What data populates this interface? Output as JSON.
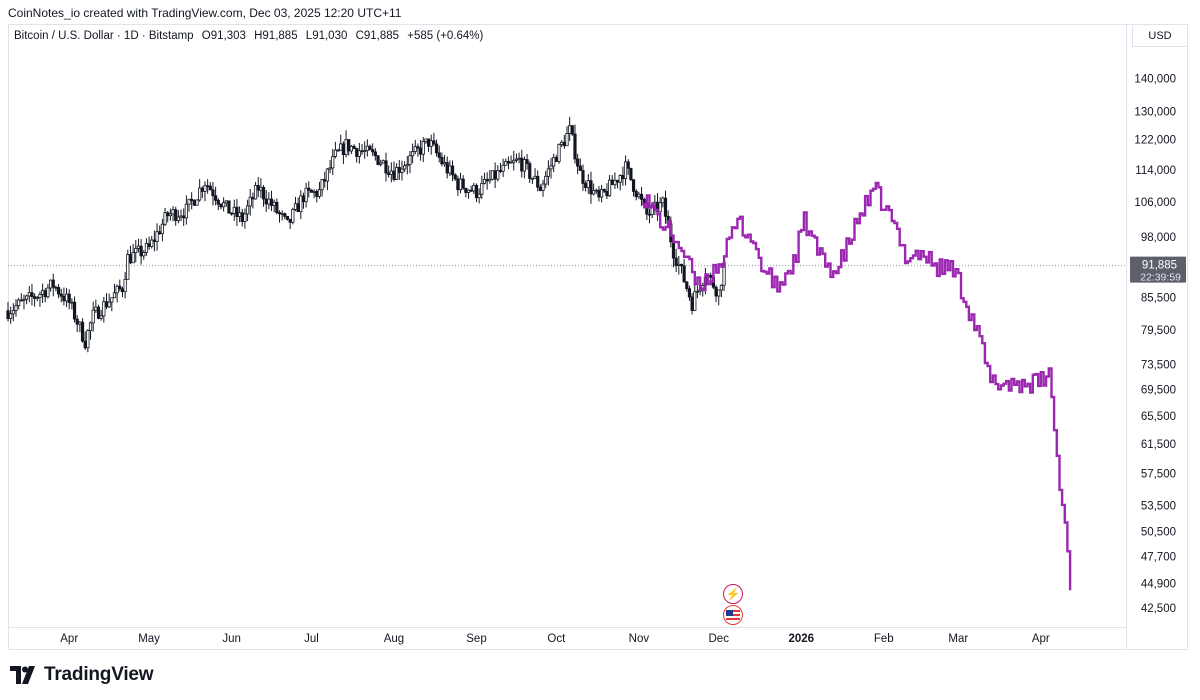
{
  "header": {
    "attribution": "CoinNotes_io created with TradingView.com, Dec 03, 2025 12:20 UTC+11"
  },
  "legend": {
    "symbol": "Bitcoin / U.S. Dollar · 1D · Bitstamp",
    "open": "O91,303",
    "high": "H91,885",
    "low": "L91,030",
    "close": "C91,885",
    "change": "+585 (+0.64%)"
  },
  "price_axis": {
    "currency": "USD",
    "last_price": "91,885",
    "countdown": "22:39:59"
  },
  "footer": {
    "brand": "TradingView"
  },
  "colors": {
    "candles": "#131722",
    "projection": "#9c27b0",
    "last_price_badge": "#5d606b",
    "grid_line": "#9598a1"
  },
  "events": [
    {
      "icon": "lightning-event-icon"
    },
    {
      "icon": "us-flag-event-icon"
    }
  ],
  "chart_data": {
    "type": "candlestick",
    "title": "Bitcoin / U.S. Dollar · 1D · Bitstamp",
    "xlabel": "",
    "ylabel": "",
    "y_scale": "log",
    "ylim": [
      40800,
      150000
    ],
    "y_ticks": [
      140000,
      130000,
      122000,
      114000,
      106000,
      98000,
      85500,
      79500,
      73500,
      69500,
      65500,
      61500,
      57500,
      53500,
      50500,
      47700,
      44900,
      42500
    ],
    "y_tick_labels": [
      "140,000",
      "130,000",
      "122,000",
      "114,000",
      "106,000",
      "98,000",
      "85,500",
      "79,500",
      "73,500",
      "69,500",
      "65,500",
      "61,500",
      "57,500",
      "53,500",
      "50,500",
      "47,700",
      "44,900",
      "42,500"
    ],
    "x_ticks": [
      {
        "label": "Apr",
        "date": "2025-04-01"
      },
      {
        "label": "May",
        "date": "2025-05-01"
      },
      {
        "label": "Jun",
        "date": "2025-06-01"
      },
      {
        "label": "Jul",
        "date": "2025-07-01"
      },
      {
        "label": "Aug",
        "date": "2025-08-01"
      },
      {
        "label": "Sep",
        "date": "2025-09-01"
      },
      {
        "label": "Oct",
        "date": "2025-10-01"
      },
      {
        "label": "Nov",
        "date": "2025-11-01"
      },
      {
        "label": "Dec",
        "date": "2025-12-01"
      },
      {
        "label": "2026",
        "date": "2026-01-01",
        "bold": true
      },
      {
        "label": "Feb",
        "date": "2026-02-01"
      },
      {
        "label": "Mar",
        "date": "2026-03-01"
      },
      {
        "label": "Apr",
        "date": "2026-04-01"
      }
    ],
    "xlim": [
      "2025-03-09",
      "2026-05-03"
    ],
    "last_price": 91885,
    "series": [
      {
        "name": "BTCUSD",
        "kind": "candles",
        "start": "2025-03-09",
        "end": "2025-12-03",
        "anchors": [
          [
            "2025-03-09",
            83000
          ],
          [
            "2025-03-20",
            86000
          ],
          [
            "2025-03-26",
            88000
          ],
          [
            "2025-04-01",
            84500
          ],
          [
            "2025-04-07",
            77500
          ],
          [
            "2025-04-10",
            82000
          ],
          [
            "2025-04-21",
            87500
          ],
          [
            "2025-04-23",
            93500
          ],
          [
            "2025-05-01",
            95500
          ],
          [
            "2025-05-08",
            103000
          ],
          [
            "2025-05-15",
            104000
          ],
          [
            "2025-05-22",
            111000
          ],
          [
            "2025-05-30",
            104500
          ],
          [
            "2025-06-05",
            102000
          ],
          [
            "2025-06-11",
            109500
          ],
          [
            "2025-06-22",
            100500
          ],
          [
            "2025-06-28",
            107500
          ],
          [
            "2025-07-04",
            108500
          ],
          [
            "2025-07-10",
            117500
          ],
          [
            "2025-07-14",
            120500
          ],
          [
            "2025-07-25",
            117500
          ],
          [
            "2025-08-01",
            113500
          ],
          [
            "2025-08-08",
            117500
          ],
          [
            "2025-08-14",
            121500
          ],
          [
            "2025-08-19",
            116000
          ],
          [
            "2025-08-25",
            110500
          ],
          [
            "2025-09-01",
            108500
          ],
          [
            "2025-09-10",
            113500
          ],
          [
            "2025-09-17",
            116500
          ],
          [
            "2025-09-25",
            109500
          ],
          [
            "2025-10-01",
            118000
          ],
          [
            "2025-10-06",
            124500
          ],
          [
            "2025-10-10",
            113000
          ],
          [
            "2025-10-17",
            106500
          ],
          [
            "2025-10-21",
            109500
          ],
          [
            "2025-10-27",
            114500
          ],
          [
            "2025-11-04",
            103000
          ],
          [
            "2025-11-10",
            105500
          ],
          [
            "2025-11-14",
            95000
          ],
          [
            "2025-11-21",
            84500
          ],
          [
            "2025-11-26",
            90500
          ],
          [
            "2025-12-01",
            86500
          ],
          [
            "2025-12-03",
            91885
          ]
        ]
      },
      {
        "name": "Projection",
        "kind": "line",
        "start": "2025-11-02",
        "end": "2026-04-12",
        "anchors": [
          [
            "2025-11-02",
            108000
          ],
          [
            "2025-11-09",
            101500
          ],
          [
            "2025-11-16",
            96500
          ],
          [
            "2025-11-23",
            87500
          ],
          [
            "2025-11-27",
            89500
          ],
          [
            "2025-12-03",
            94000
          ],
          [
            "2025-12-08",
            101500
          ],
          [
            "2025-12-13",
            98000
          ],
          [
            "2025-12-18",
            90500
          ],
          [
            "2025-12-23",
            87500
          ],
          [
            "2025-12-29",
            92500
          ],
          [
            "2026-01-02",
            101500
          ],
          [
            "2026-01-08",
            93500
          ],
          [
            "2026-01-14",
            90500
          ],
          [
            "2026-01-19",
            97000
          ],
          [
            "2026-01-24",
            104500
          ],
          [
            "2026-01-29",
            108500
          ],
          [
            "2026-02-04",
            101500
          ],
          [
            "2026-02-09",
            94000
          ],
          [
            "2026-02-15",
            94500
          ],
          [
            "2026-02-21",
            91500
          ],
          [
            "2026-02-27",
            91500
          ],
          [
            "2026-03-04",
            84500
          ],
          [
            "2026-03-09",
            77500
          ],
          [
            "2026-03-13",
            70500
          ],
          [
            "2026-03-19",
            70500
          ],
          [
            "2026-03-25",
            70500
          ],
          [
            "2026-03-31",
            70500
          ],
          [
            "2026-04-04",
            72000
          ],
          [
            "2026-04-06",
            64000
          ],
          [
            "2026-04-08",
            55500
          ],
          [
            "2026-04-10",
            51500
          ],
          [
            "2026-04-12",
            44900
          ]
        ]
      }
    ]
  }
}
